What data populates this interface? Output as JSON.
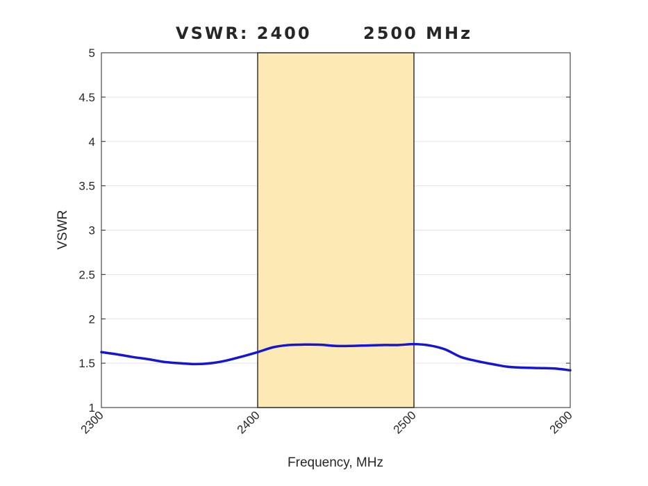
{
  "chart_data": {
    "type": "line",
    "title_parts": [
      "VSWR: 2400",
      "2500 MHz"
    ],
    "xlabel": "Frequency, MHz",
    "ylabel": "VSWR",
    "xlim": [
      2300,
      2600
    ],
    "ylim": [
      1,
      5
    ],
    "x_ticks": [
      "2300",
      "2400",
      "2500",
      "2600"
    ],
    "y_ticks": [
      "1",
      "1.5",
      "2",
      "2.5",
      "3",
      "3.5",
      "4",
      "4.5",
      "5"
    ],
    "grid": true,
    "highlight_band": {
      "x_start": 2400,
      "x_end": 2500,
      "color": "#fde9b3",
      "edge_color": "#333333"
    },
    "series": [
      {
        "name": "VSWR",
        "color": "#1515d4",
        "x": [
          2300,
          2310,
          2320,
          2330,
          2340,
          2350,
          2360,
          2370,
          2380,
          2390,
          2400,
          2410,
          2420,
          2430,
          2440,
          2450,
          2460,
          2470,
          2480,
          2490,
          2500,
          2510,
          2520,
          2530,
          2540,
          2550,
          2560,
          2570,
          2580,
          2590,
          2600
        ],
        "values": [
          1.625,
          1.6,
          1.57,
          1.545,
          1.515,
          1.5,
          1.49,
          1.5,
          1.53,
          1.575,
          1.625,
          1.68,
          1.705,
          1.71,
          1.708,
          1.695,
          1.695,
          1.7,
          1.705,
          1.705,
          1.715,
          1.7,
          1.655,
          1.57,
          1.525,
          1.49,
          1.46,
          1.45,
          1.445,
          1.44,
          1.42
        ]
      }
    ]
  }
}
